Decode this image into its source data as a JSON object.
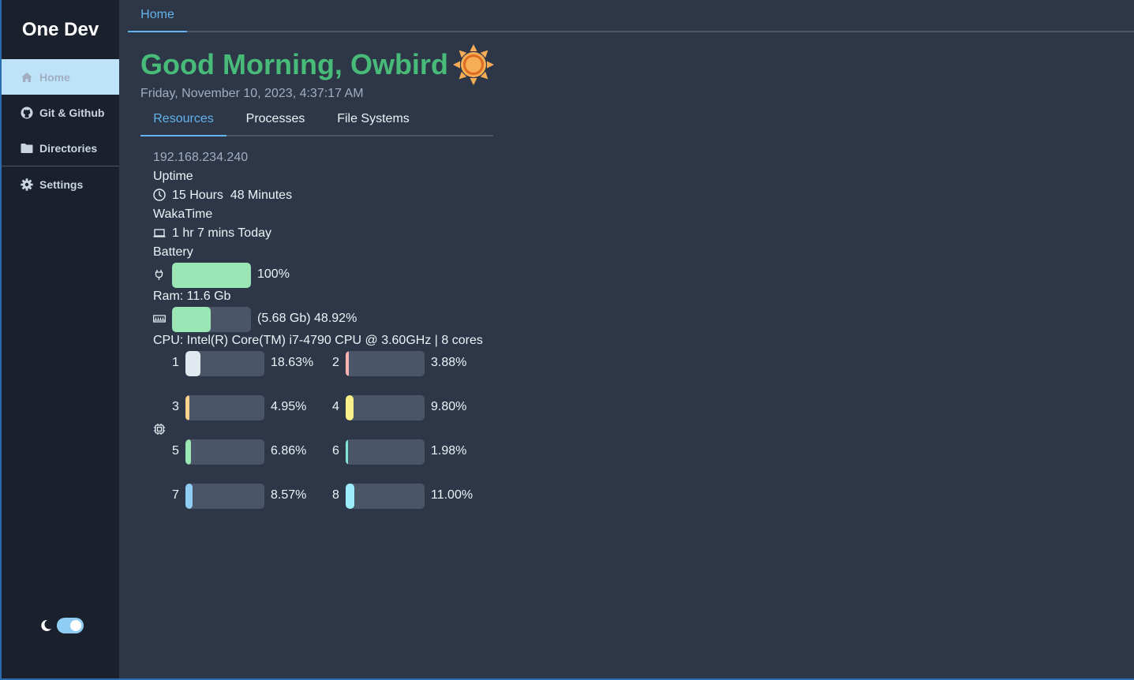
{
  "app": {
    "title": "One Dev"
  },
  "sidebar": {
    "items": [
      {
        "label": "Home",
        "icon": "home-icon"
      },
      {
        "label": "Git & Github",
        "icon": "github-icon"
      },
      {
        "label": "Directories",
        "icon": "folder-icon"
      },
      {
        "label": "Settings",
        "icon": "gear-icon"
      }
    ],
    "theme_toggle": {
      "state": "on",
      "icon": "moon-icon"
    }
  },
  "top_tabs": [
    {
      "label": "Home"
    }
  ],
  "greeting": {
    "text": "Good Morning, Owbird",
    "icon": "sun-icon",
    "datetime": "Friday, November 10, 2023, 4:37:17 AM"
  },
  "content_tabs": [
    {
      "label": "Resources",
      "active": true
    },
    {
      "label": "Processes"
    },
    {
      "label": "File Systems"
    }
  ],
  "resources": {
    "ip": "192.168.234.240",
    "uptime": {
      "label": "Uptime",
      "value": "15 Hours  48 Minutes",
      "icon": "clock-icon"
    },
    "wakatime": {
      "label": "WakaTime",
      "value": "1 hr 7 mins Today",
      "icon": "laptop-icon"
    },
    "battery": {
      "label": "Battery",
      "percent_text": "100%",
      "fraction": 1.0,
      "icon": "plug-icon",
      "color": "#9ae6b4"
    },
    "ram": {
      "label": "Ram: 11.6 Gb",
      "percent_text": "(5.68 Gb) 48.92%",
      "fraction": 0.4892,
      "icon": "memory-icon",
      "color": "#9ae6b4"
    },
    "cpu": {
      "label": "CPU: Intel(R) Core(TM) i7-4790 CPU @ 3.60GHz | 8 cores",
      "icon": "cpu-icon",
      "cores": [
        {
          "num": "1",
          "percent_text": "18.63%",
          "fraction": 0.1863,
          "color": "#e2e8f0"
        },
        {
          "num": "2",
          "percent_text": "3.88%",
          "fraction": 0.0388,
          "color": "#feb2b2"
        },
        {
          "num": "3",
          "percent_text": "4.95%",
          "fraction": 0.0495,
          "color": "#fbd38d"
        },
        {
          "num": "4",
          "percent_text": "9.80%",
          "fraction": 0.098,
          "color": "#faf089"
        },
        {
          "num": "5",
          "percent_text": "6.86%",
          "fraction": 0.0686,
          "color": "#9ae6b4"
        },
        {
          "num": "6",
          "percent_text": "1.98%",
          "fraction": 0.0198,
          "color": "#81e6d9"
        },
        {
          "num": "7",
          "percent_text": "8.57%",
          "fraction": 0.0857,
          "color": "#90cdf4"
        },
        {
          "num": "8",
          "percent_text": "11.00%",
          "fraction": 0.11,
          "color": "#9decf9"
        }
      ]
    }
  }
}
